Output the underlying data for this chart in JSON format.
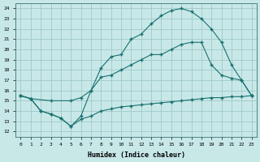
{
  "background_color": "#c8e8e8",
  "grid_color": "#a0c8c8",
  "line_color": "#1a7070",
  "xlabel": "Humidex (Indice chaleur)",
  "ylabel_ticks": [
    12,
    13,
    14,
    15,
    16,
    17,
    18,
    19,
    20,
    21,
    22,
    23,
    24
  ],
  "xlabel_ticks": [
    0,
    1,
    2,
    3,
    4,
    5,
    6,
    7,
    8,
    9,
    10,
    11,
    12,
    13,
    14,
    15,
    16,
    17,
    18,
    19,
    20,
    21,
    22,
    23
  ],
  "xlim": [
    -0.5,
    23.5
  ],
  "ylim": [
    11.5,
    24.5
  ],
  "curve1_x": [
    0,
    1,
    2,
    3,
    4,
    5,
    6,
    7,
    8,
    9,
    10,
    11,
    12,
    13,
    14,
    15,
    16,
    17,
    18,
    19,
    20,
    21,
    22,
    23
  ],
  "curve1_y": [
    15.5,
    15.2,
    14.0,
    13.7,
    13.3,
    12.5,
    13.2,
    13.5,
    14.0,
    14.2,
    14.4,
    14.5,
    14.6,
    14.7,
    14.8,
    14.9,
    15.0,
    15.1,
    15.2,
    15.3,
    15.3,
    15.4,
    15.4,
    15.5
  ],
  "curve2_x": [
    0,
    1,
    2,
    3,
    4,
    5,
    6,
    7,
    8,
    9,
    10,
    11,
    12,
    13,
    14,
    15,
    16,
    17,
    18,
    19,
    20,
    21,
    22,
    23
  ],
  "curve2_y": [
    15.5,
    15.2,
    14.0,
    13.7,
    13.3,
    12.5,
    13.5,
    16.0,
    18.2,
    19.3,
    19.5,
    21.0,
    21.5,
    22.5,
    23.3,
    23.8,
    24.0,
    23.7,
    23.0,
    22.0,
    20.7,
    18.5,
    17.0,
    15.5
  ],
  "curve3_x": [
    0,
    1,
    3,
    5,
    6,
    7,
    8,
    9,
    10,
    11,
    12,
    13,
    14,
    15,
    16,
    17,
    18,
    19,
    20,
    21,
    22,
    23
  ],
  "curve3_y": [
    15.5,
    15.2,
    15.0,
    15.0,
    15.3,
    16.0,
    17.3,
    17.5,
    18.0,
    18.5,
    19.0,
    19.5,
    19.5,
    20.0,
    20.5,
    20.7,
    20.7,
    18.5,
    17.5,
    17.2,
    17.0,
    15.5
  ]
}
